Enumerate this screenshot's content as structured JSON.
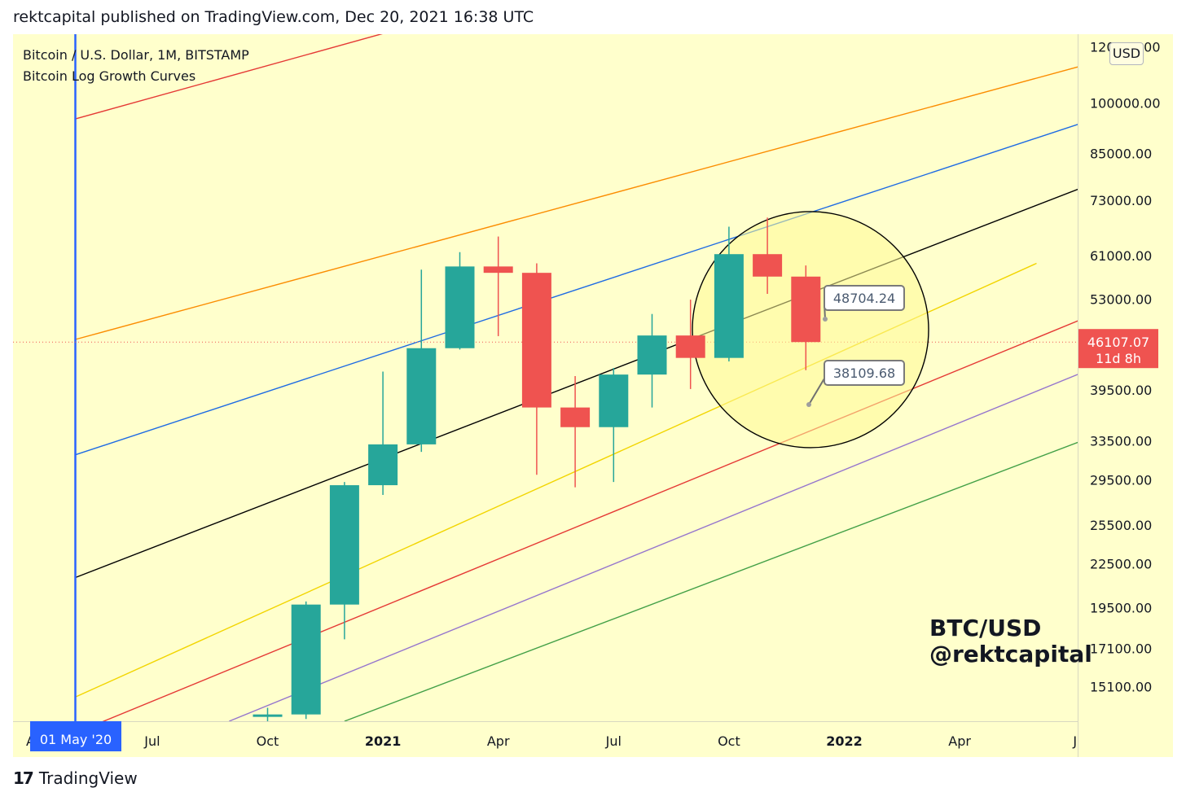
{
  "header": {
    "published": "rektcapital published on TradingView.com, Dec 20, 2021 16:38 UTC"
  },
  "chart_title": {
    "symbol": "Bitcoin / U.S. Dollar, 1M, BITSTAMP",
    "indicator": "Bitcoin Log Growth Curves"
  },
  "currency_button": "USD",
  "watermark": {
    "line1": "BTC/USD",
    "line2": "@rektcapital"
  },
  "footer": {
    "brand": "TradingView",
    "mark": "17"
  },
  "colors": {
    "background": "#ffffcc",
    "up": "#26a69a",
    "down": "#ef5350"
  },
  "chart_data": {
    "type": "candlestick",
    "y_scale": "log",
    "ylim": [
      13500,
      125000
    ],
    "price_ticks": [
      "120000.00",
      "100000.00",
      "85000.00",
      "73000.00",
      "61000.00",
      "53000.00",
      "39500.00",
      "33500.00",
      "29500.00",
      "25500.00",
      "22500.00",
      "19500.00",
      "17100.00",
      "15100.00"
    ],
    "time_ticks": [
      "Jul",
      "Oct",
      "2021",
      "Apr",
      "Jul",
      "Oct",
      "2022",
      "Apr",
      "J"
    ],
    "cursor_time_label": "01 May '20",
    "cursor_time_prefix": "A",
    "last_price": "46107.07",
    "countdown": "11d 8h",
    "callouts": [
      "48704.24",
      "38109.68"
    ],
    "candles": [
      {
        "month": "2020-10",
        "open": 13800,
        "high": 14100,
        "low": 13400,
        "close": 13800
      },
      {
        "month": "2020-11",
        "open": 13800,
        "high": 19900,
        "low": 13600,
        "close": 19700
      },
      {
        "month": "2020-12",
        "open": 19700,
        "high": 29300,
        "low": 17600,
        "close": 29000
      },
      {
        "month": "2021-01",
        "open": 29000,
        "high": 41900,
        "low": 28100,
        "close": 33100
      },
      {
        "month": "2021-02",
        "open": 33100,
        "high": 58300,
        "low": 32300,
        "close": 45200
      },
      {
        "month": "2021-03",
        "open": 45200,
        "high": 61700,
        "low": 45000,
        "close": 58900
      },
      {
        "month": "2021-04",
        "open": 58900,
        "high": 64900,
        "low": 47000,
        "close": 57700
      },
      {
        "month": "2021-05",
        "open": 57700,
        "high": 59500,
        "low": 30000,
        "close": 37300
      },
      {
        "month": "2021-06",
        "open": 37300,
        "high": 41300,
        "low": 28800,
        "close": 35000
      },
      {
        "month": "2021-07",
        "open": 35000,
        "high": 42400,
        "low": 29300,
        "close": 41500
      },
      {
        "month": "2021-08",
        "open": 41500,
        "high": 50500,
        "low": 37300,
        "close": 47100
      },
      {
        "month": "2021-09",
        "open": 47100,
        "high": 52900,
        "low": 39600,
        "close": 43800
      },
      {
        "month": "2021-10",
        "open": 43800,
        "high": 67000,
        "low": 43300,
        "close": 61300
      },
      {
        "month": "2021-11",
        "open": 61300,
        "high": 69000,
        "low": 53900,
        "close": 57000
      },
      {
        "month": "2021-12",
        "open": 57000,
        "high": 59100,
        "low": 42100,
        "close": 46107
      }
    ],
    "growth_curves": [
      {
        "color": "#e53935",
        "from": [
          "2020-05",
          95000
        ],
        "to": [
          "2022-09",
          250000
        ]
      },
      {
        "color": "#fb8c00",
        "from": [
          "2020-05",
          46500
        ],
        "to": [
          "2022-09",
          120000
        ]
      },
      {
        "color": "#1e6be3",
        "from": [
          "2020-05",
          32000
        ],
        "to": [
          "2022-09",
          101000
        ]
      },
      {
        "color": "#000000",
        "from": [
          "2020-05",
          21500
        ],
        "to": [
          "2022-09",
          83000
        ]
      },
      {
        "color": "#f2d500",
        "from": [
          "2020-05",
          14600
        ],
        "to": [
          "2022-06",
          59500
        ]
      },
      {
        "color": "#e53935",
        "from": [
          "2020-05",
          13000
        ],
        "to": [
          "2022-09",
          54500
        ]
      },
      {
        "color": "#9575cd",
        "from": [
          "2020-09",
          13500
        ],
        "to": [
          "2022-09",
          45800
        ]
      },
      {
        "color": "#43a047",
        "from": [
          "2020-12",
          13500
        ],
        "to": [
          "2022-09",
          36500
        ]
      }
    ]
  }
}
